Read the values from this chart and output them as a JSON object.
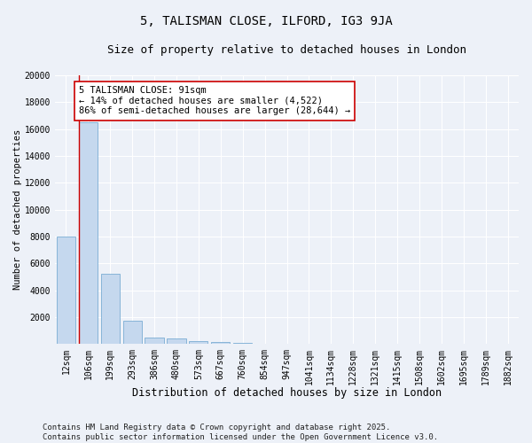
{
  "title1": "5, TALISMAN CLOSE, ILFORD, IG3 9JA",
  "title2": "Size of property relative to detached houses in London",
  "xlabel": "Distribution of detached houses by size in London",
  "ylabel": "Number of detached properties",
  "categories": [
    "12sqm",
    "106sqm",
    "199sqm",
    "293sqm",
    "386sqm",
    "480sqm",
    "573sqm",
    "667sqm",
    "760sqm",
    "854sqm",
    "947sqm",
    "1041sqm",
    "1134sqm",
    "1228sqm",
    "1321sqm",
    "1415sqm",
    "1508sqm",
    "1602sqm",
    "1695sqm",
    "1789sqm",
    "1882sqm"
  ],
  "values": [
    8000,
    16500,
    5200,
    1700,
    490,
    380,
    240,
    145,
    85,
    28,
    12,
    6,
    3,
    2,
    2,
    1,
    1,
    0,
    0,
    0,
    0
  ],
  "bar_color": "#c5d8ee",
  "bar_edge_color": "#7aadd4",
  "vline_color": "#cc0000",
  "annotation_text": "5 TALISMAN CLOSE: 91sqm\n← 14% of detached houses are smaller (4,522)\n86% of semi-detached houses are larger (28,644) →",
  "annotation_box_color": "#ffffff",
  "annotation_border_color": "#cc0000",
  "ylim": [
    0,
    20000
  ],
  "yticks": [
    0,
    2000,
    4000,
    6000,
    8000,
    10000,
    12000,
    14000,
    16000,
    18000,
    20000
  ],
  "background_color": "#edf1f8",
  "grid_color": "#ffffff",
  "footer_text": "Contains HM Land Registry data © Crown copyright and database right 2025.\nContains public sector information licensed under the Open Government Licence v3.0.",
  "title1_fontsize": 10,
  "title2_fontsize": 9,
  "xlabel_fontsize": 8.5,
  "ylabel_fontsize": 7.5,
  "tick_fontsize": 7,
  "annotation_fontsize": 7.5,
  "footer_fontsize": 6.5
}
